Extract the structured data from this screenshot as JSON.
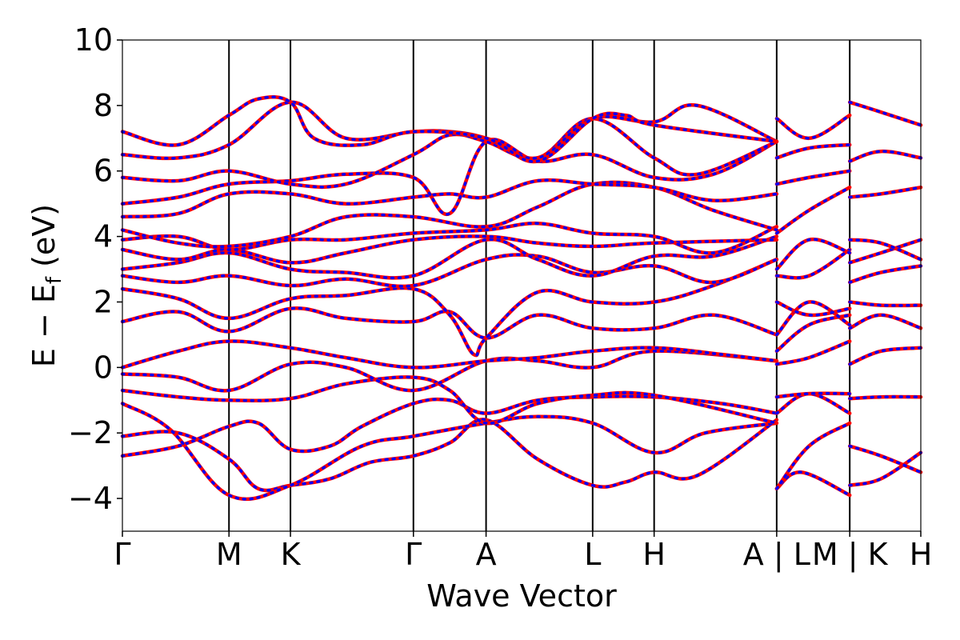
{
  "chart_data": {
    "type": "line",
    "xlabel": "Wave Vector",
    "ylabel": "E − E",
    "ylabel_sub": "f",
    "ylabel_unit": " (eV)",
    "ylim": [
      -5,
      10
    ],
    "yticks": [
      -4,
      -2,
      0,
      2,
      4,
      6,
      8,
      10
    ],
    "xlim": [
      0,
      1
    ],
    "kpoints": [
      {
        "label": "Γ",
        "x": 0.0
      },
      {
        "label": "M",
        "x": 0.1335
      },
      {
        "label": "K",
        "x": 0.2105
      },
      {
        "label": "Γ",
        "x": 0.3645
      },
      {
        "label": "A",
        "x": 0.4555
      },
      {
        "label": "L",
        "x": 0.589
      },
      {
        "label": "H",
        "x": 0.666
      },
      {
        "label": "A | L",
        "x": 0.8195
      },
      {
        "label": "M | K",
        "x": 0.911
      },
      {
        "label": "H",
        "x": 1.0
      }
    ],
    "colors": {
      "red": "#ff0000",
      "blue": "#0000ff"
    },
    "bands": [
      [
        [
          0,
          -2.7
        ],
        [
          0.07,
          -2.4
        ],
        [
          0.1335,
          -1.8
        ],
        [
          0.17,
          -1.7
        ],
        [
          0.2105,
          -2.5
        ],
        [
          0.26,
          -2.4
        ],
        [
          0.3,
          -1.8
        ],
        [
          0.3645,
          -1.1
        ],
        [
          0.41,
          -1.0
        ],
        [
          0.4555,
          -1.4
        ],
        [
          0.52,
          -1.0
        ],
        [
          0.589,
          -0.9
        ],
        [
          0.666,
          -0.9
        ],
        [
          0.75,
          -1.1
        ],
        [
          0.8195,
          -1.4
        ]
      ],
      [
        [
          0,
          -2.1
        ],
        [
          0.07,
          -2.0
        ],
        [
          0.1335,
          -2.8
        ],
        [
          0.17,
          -3.7
        ],
        [
          0.2105,
          -3.6
        ],
        [
          0.26,
          -3.4
        ],
        [
          0.31,
          -2.9
        ],
        [
          0.3645,
          -2.7
        ],
        [
          0.41,
          -2.3
        ],
        [
          0.4555,
          -1.6
        ],
        [
          0.52,
          -2.8
        ],
        [
          0.589,
          -3.6
        ],
        [
          0.63,
          -3.5
        ],
        [
          0.666,
          -3.2
        ],
        [
          0.72,
          -3.3
        ],
        [
          0.8195,
          -1.6
        ]
      ],
      [
        [
          0,
          -1.1
        ],
        [
          0.06,
          -1.9
        ],
        [
          0.1335,
          -3.9
        ],
        [
          0.2105,
          -3.6
        ],
        [
          0.3,
          -2.4
        ],
        [
          0.3645,
          -2.1
        ],
        [
          0.4555,
          -1.7
        ],
        [
          0.52,
          -1.5
        ],
        [
          0.589,
          -1.7
        ],
        [
          0.666,
          -2.6
        ],
        [
          0.73,
          -2.0
        ],
        [
          0.8195,
          -1.7
        ]
      ],
      [
        [
          0,
          -0.7
        ],
        [
          0.07,
          -0.9
        ],
        [
          0.1335,
          -1.0
        ],
        [
          0.2105,
          -0.95
        ],
        [
          0.28,
          -0.5
        ],
        [
          0.3645,
          -0.3
        ],
        [
          0.41,
          -0.7
        ],
        [
          0.4555,
          -1.7
        ],
        [
          0.52,
          -1.1
        ],
        [
          0.589,
          -0.85
        ],
        [
          0.666,
          -0.85
        ],
        [
          0.8195,
          -1.7
        ]
      ],
      [
        [
          0,
          -0.2
        ],
        [
          0.07,
          -0.3
        ],
        [
          0.1335,
          -0.7
        ],
        [
          0.2105,
          0.1
        ],
        [
          0.28,
          0.0
        ],
        [
          0.3645,
          -0.7
        ],
        [
          0.4555,
          0.2
        ],
        [
          0.52,
          0.2
        ],
        [
          0.589,
          0.0
        ],
        [
          0.666,
          0.5
        ],
        [
          0.8195,
          0.2
        ]
      ],
      [
        [
          0,
          0.0
        ],
        [
          0.07,
          0.5
        ],
        [
          0.1335,
          0.8
        ],
        [
          0.2105,
          0.6
        ],
        [
          0.28,
          0.3
        ],
        [
          0.3645,
          0.0
        ],
        [
          0.4555,
          0.2
        ],
        [
          0.52,
          0.3
        ],
        [
          0.589,
          0.5
        ],
        [
          0.666,
          0.6
        ],
        [
          0.75,
          0.4
        ],
        [
          0.8195,
          0.2
        ]
      ],
      [
        [
          0,
          1.4
        ],
        [
          0.07,
          1.7
        ],
        [
          0.1335,
          1.1
        ],
        [
          0.2105,
          1.8
        ],
        [
          0.28,
          1.5
        ],
        [
          0.3645,
          1.4
        ],
        [
          0.41,
          1.7
        ],
        [
          0.4555,
          0.9
        ],
        [
          0.52,
          1.6
        ],
        [
          0.589,
          1.2
        ],
        [
          0.666,
          1.2
        ],
        [
          0.74,
          1.6
        ],
        [
          0.8195,
          1.0
        ]
      ],
      [
        [
          0,
          2.4
        ],
        [
          0.07,
          2.1
        ],
        [
          0.1335,
          1.5
        ],
        [
          0.2105,
          2.1
        ],
        [
          0.28,
          2.2
        ],
        [
          0.3645,
          2.4
        ],
        [
          0.41,
          1.6
        ],
        [
          0.44,
          0.4
        ],
        [
          0.4555,
          0.9
        ],
        [
          0.52,
          2.3
        ],
        [
          0.589,
          2.0
        ],
        [
          0.666,
          2.0
        ],
        [
          0.74,
          2.5
        ],
        [
          0.8195,
          3.3
        ]
      ],
      [
        [
          0,
          2.8
        ],
        [
          0.07,
          2.6
        ],
        [
          0.1335,
          2.8
        ],
        [
          0.2105,
          2.5
        ],
        [
          0.28,
          2.7
        ],
        [
          0.3645,
          2.5
        ],
        [
          0.4555,
          3.3
        ],
        [
          0.52,
          3.4
        ],
        [
          0.589,
          2.9
        ],
        [
          0.666,
          3.1
        ],
        [
          0.74,
          2.6
        ],
        [
          0.8195,
          3.3
        ]
      ],
      [
        [
          0,
          3.0
        ],
        [
          0.07,
          3.2
        ],
        [
          0.1335,
          3.5
        ],
        [
          0.2105,
          3.0
        ],
        [
          0.28,
          2.9
        ],
        [
          0.3645,
          2.8
        ],
        [
          0.4555,
          3.9
        ],
        [
          0.52,
          3.3
        ],
        [
          0.589,
          2.8
        ],
        [
          0.666,
          3.4
        ],
        [
          0.74,
          3.4
        ],
        [
          0.8195,
          4.0
        ]
      ],
      [
        [
          0,
          3.6
        ],
        [
          0.07,
          3.3
        ],
        [
          0.1335,
          3.6
        ],
        [
          0.2105,
          3.2
        ],
        [
          0.28,
          3.5
        ],
        [
          0.3645,
          3.9
        ],
        [
          0.4555,
          4.0
        ],
        [
          0.52,
          3.8
        ],
        [
          0.589,
          3.7
        ],
        [
          0.666,
          3.8
        ],
        [
          0.8195,
          3.9
        ]
      ],
      [
        [
          0,
          3.9
        ],
        [
          0.07,
          4.0
        ],
        [
          0.1335,
          3.6
        ],
        [
          0.2105,
          3.9
        ],
        [
          0.28,
          3.9
        ],
        [
          0.3645,
          4.1
        ],
        [
          0.4555,
          4.2
        ],
        [
          0.52,
          4.4
        ],
        [
          0.589,
          4.1
        ],
        [
          0.666,
          4.0
        ],
        [
          0.74,
          3.5
        ],
        [
          0.8195,
          4.3
        ]
      ],
      [
        [
          0,
          4.2
        ],
        [
          0.07,
          3.8
        ],
        [
          0.1335,
          3.7
        ],
        [
          0.2105,
          4.0
        ],
        [
          0.28,
          4.6
        ],
        [
          0.3645,
          4.6
        ],
        [
          0.4555,
          4.3
        ],
        [
          0.52,
          4.9
        ],
        [
          0.589,
          5.6
        ],
        [
          0.666,
          5.5
        ],
        [
          0.74,
          4.8
        ],
        [
          0.8195,
          4.2
        ]
      ],
      [
        [
          0,
          4.6
        ],
        [
          0.07,
          4.7
        ],
        [
          0.1335,
          5.3
        ],
        [
          0.2105,
          5.3
        ],
        [
          0.28,
          5.0
        ],
        [
          0.3645,
          5.2
        ],
        [
          0.41,
          5.3
        ],
        [
          0.4555,
          5.2
        ],
        [
          0.52,
          5.7
        ],
        [
          0.589,
          5.6
        ],
        [
          0.666,
          5.5
        ],
        [
          0.74,
          5.1
        ],
        [
          0.8195,
          5.3
        ]
      ],
      [
        [
          0,
          5.0
        ],
        [
          0.07,
          5.2
        ],
        [
          0.1335,
          5.6
        ],
        [
          0.2105,
          5.7
        ],
        [
          0.28,
          5.9
        ],
        [
          0.3645,
          5.8
        ],
        [
          0.41,
          4.7
        ],
        [
          0.4555,
          6.9
        ],
        [
          0.52,
          6.3
        ],
        [
          0.589,
          6.5
        ],
        [
          0.666,
          5.8
        ],
        [
          0.74,
          5.9
        ],
        [
          0.8195,
          6.9
        ]
      ],
      [
        [
          0,
          5.8
        ],
        [
          0.07,
          5.7
        ],
        [
          0.1335,
          6.0
        ],
        [
          0.2105,
          5.6
        ],
        [
          0.28,
          5.6
        ],
        [
          0.3645,
          6.5
        ],
        [
          0.41,
          7.1
        ],
        [
          0.4555,
          6.9
        ],
        [
          0.52,
          6.4
        ],
        [
          0.589,
          7.6
        ],
        [
          0.666,
          6.4
        ],
        [
          0.72,
          5.9
        ],
        [
          0.8195,
          6.9
        ]
      ],
      [
        [
          0,
          6.5
        ],
        [
          0.07,
          6.4
        ],
        [
          0.1335,
          6.8
        ],
        [
          0.2105,
          8.1
        ],
        [
          0.28,
          7.0
        ],
        [
          0.3645,
          7.2
        ],
        [
          0.41,
          7.2
        ],
        [
          0.4555,
          7.0
        ],
        [
          0.52,
          6.4
        ],
        [
          0.589,
          7.6
        ],
        [
          0.666,
          7.5
        ],
        [
          0.72,
          8.0
        ],
        [
          0.8195,
          6.9
        ]
      ],
      [
        [
          0,
          7.2
        ],
        [
          0.07,
          6.8
        ],
        [
          0.1335,
          7.7
        ],
        [
          0.17,
          8.2
        ],
        [
          0.2105,
          8.1
        ],
        [
          0.24,
          7.0
        ],
        [
          0.3,
          6.8
        ],
        [
          0.3645,
          7.2
        ],
        [
          0.4555,
          7.0
        ],
        [
          0.52,
          6.3
        ],
        [
          0.589,
          7.6
        ],
        [
          0.63,
          7.7
        ],
        [
          0.666,
          7.4
        ],
        [
          0.8195,
          6.9
        ]
      ],
      [
        [
          0.8195,
          -3.7
        ],
        [
          0.85,
          -3.2
        ],
        [
          0.911,
          -3.9
        ]
      ],
      [
        [
          0.8195,
          -3.7
        ],
        [
          0.86,
          -2.4
        ],
        [
          0.911,
          -1.7
        ]
      ],
      [
        [
          0.8195,
          -1.4
        ],
        [
          0.86,
          -0.8
        ],
        [
          0.911,
          -1.4
        ]
      ],
      [
        [
          0.8195,
          -0.9
        ],
        [
          0.86,
          -0.8
        ],
        [
          0.911,
          -0.8
        ]
      ],
      [
        [
          0.8195,
          0.1
        ],
        [
          0.86,
          0.3
        ],
        [
          0.911,
          0.8
        ]
      ],
      [
        [
          0.8195,
          0.5
        ],
        [
          0.86,
          1.3
        ],
        [
          0.911,
          1.6
        ]
      ],
      [
        [
          0.8195,
          1.0
        ],
        [
          0.86,
          2.0
        ],
        [
          0.911,
          1.3
        ]
      ],
      [
        [
          0.8195,
          2.0
        ],
        [
          0.86,
          1.6
        ],
        [
          0.911,
          1.8
        ]
      ],
      [
        [
          0.8195,
          2.8
        ],
        [
          0.86,
          2.8
        ],
        [
          0.911,
          3.6
        ]
      ],
      [
        [
          0.8195,
          3.0
        ],
        [
          0.86,
          3.9
        ],
        [
          0.911,
          3.5
        ]
      ],
      [
        [
          0.8195,
          4.1
        ],
        [
          0.86,
          4.8
        ],
        [
          0.911,
          5.5
        ]
      ],
      [
        [
          0.8195,
          5.6
        ],
        [
          0.86,
          5.8
        ],
        [
          0.911,
          6.0
        ]
      ],
      [
        [
          0.8195,
          6.4
        ],
        [
          0.86,
          6.7
        ],
        [
          0.911,
          6.8
        ]
      ],
      [
        [
          0.8195,
          7.6
        ],
        [
          0.86,
          7.0
        ],
        [
          0.911,
          7.7
        ]
      ],
      [
        [
          0.911,
          -3.6
        ],
        [
          0.95,
          -3.4
        ],
        [
          1.0,
          -2.6
        ]
      ],
      [
        [
          0.911,
          -2.4
        ],
        [
          0.95,
          -2.7
        ],
        [
          1.0,
          -3.2
        ]
      ],
      [
        [
          0.911,
          -0.95
        ],
        [
          0.95,
          -0.9
        ],
        [
          1.0,
          -0.9
        ]
      ],
      [
        [
          0.911,
          0.1
        ],
        [
          0.95,
          0.5
        ],
        [
          1.0,
          0.6
        ]
      ],
      [
        [
          0.911,
          1.2
        ],
        [
          0.95,
          1.6
        ],
        [
          1.0,
          1.2
        ]
      ],
      [
        [
          0.911,
          2.0
        ],
        [
          0.95,
          1.9
        ],
        [
          1.0,
          1.9
        ]
      ],
      [
        [
          0.911,
          2.6
        ],
        [
          0.95,
          2.9
        ],
        [
          1.0,
          3.1
        ]
      ],
      [
        [
          0.911,
          3.2
        ],
        [
          0.95,
          3.5
        ],
        [
          1.0,
          3.9
        ]
      ],
      [
        [
          0.911,
          3.9
        ],
        [
          0.95,
          3.8
        ],
        [
          1.0,
          3.3
        ]
      ],
      [
        [
          0.911,
          5.2
        ],
        [
          0.95,
          5.3
        ],
        [
          1.0,
          5.5
        ]
      ],
      [
        [
          0.911,
          6.3
        ],
        [
          0.95,
          6.6
        ],
        [
          1.0,
          6.4
        ]
      ],
      [
        [
          0.911,
          8.1
        ],
        [
          0.95,
          7.8
        ],
        [
          1.0,
          7.4
        ]
      ]
    ]
  }
}
